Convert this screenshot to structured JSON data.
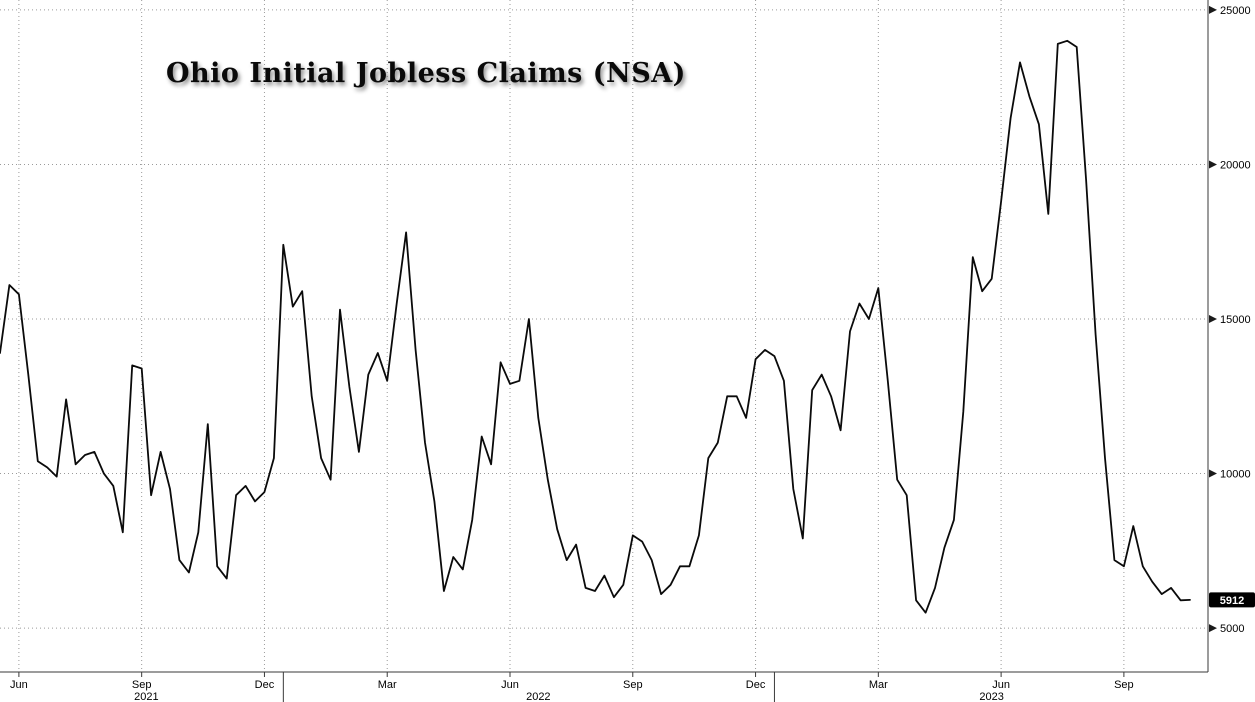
{
  "title_annotation": "Ohio Initial Jobless Claims (NSA)",
  "last_value_badge": "5912",
  "colors": {
    "background": "#ffffff",
    "line": "#0a0a0a",
    "grid": "#9a9a9a",
    "axis": "#3a3a3a",
    "tick_text": "#000000",
    "badge_bg": "#000000",
    "badge_text": "#ffffff"
  },
  "chart_data": {
    "type": "line",
    "title": "Ohio Initial Jobless Claims (NSA)",
    "x_unit": "week",
    "grid": true,
    "legend_position": "none",
    "ylim": [
      3580,
      25320
    ],
    "y_ticks": [
      5000,
      10000,
      15000,
      20000,
      25000
    ],
    "x_ticks": [
      {
        "week": 2,
        "label": "Jun"
      },
      {
        "week": 15,
        "label": "Sep"
      },
      {
        "week": 28,
        "label": "Dec"
      },
      {
        "week": 41,
        "label": "Mar"
      },
      {
        "week": 54,
        "label": "Jun"
      },
      {
        "week": 67,
        "label": "Sep"
      },
      {
        "week": 80,
        "label": "Dec"
      },
      {
        "week": 93,
        "label": "Mar"
      },
      {
        "week": 106,
        "label": "Jun"
      },
      {
        "week": 119,
        "label": "Sep"
      }
    ],
    "year_labels": [
      {
        "week": 15.5,
        "label": "2021"
      },
      {
        "week": 57,
        "label": "2022"
      },
      {
        "week": 105,
        "label": "2023"
      }
    ],
    "year_separators": [
      30,
      82
    ],
    "last_value": 5912,
    "series": [
      {
        "name": "Ohio Initial Jobless Claims (NSA)",
        "values": [
          13900,
          16100,
          15800,
          13200,
          10400,
          10200,
          9900,
          12400,
          10300,
          10600,
          10700,
          10000,
          9600,
          8100,
          13500,
          13400,
          9300,
          10700,
          9500,
          7200,
          6800,
          8100,
          11600,
          7000,
          6600,
          9300,
          9600,
          9100,
          9400,
          10500,
          17400,
          15400,
          15900,
          12500,
          10500,
          9800,
          15300,
          12800,
          10700,
          13200,
          13900,
          13000,
          15500,
          17800,
          14000,
          11000,
          9100,
          6200,
          7300,
          6900,
          8500,
          11200,
          10300,
          13600,
          12900,
          13000,
          15000,
          11800,
          9800,
          8200,
          7200,
          7700,
          6300,
          6200,
          6700,
          6000,
          6400,
          8000,
          7800,
          7200,
          6100,
          6400,
          7000,
          7000,
          8000,
          10500,
          11000,
          12500,
          12500,
          11800,
          13700,
          14000,
          13800,
          13000,
          9500,
          7900,
          12700,
          13200,
          12500,
          11400,
          14600,
          15500,
          15000,
          16000,
          13000,
          9800,
          9300,
          5900,
          5500,
          6300,
          7600,
          8500,
          12000,
          17000,
          15900,
          16300,
          18800,
          21500,
          23300,
          22200,
          21300,
          18400,
          23900,
          24000,
          23800,
          19500,
          14500,
          10500,
          7200,
          7000,
          8300,
          7000,
          6500,
          6100,
          6300,
          5900,
          5912
        ]
      }
    ]
  }
}
